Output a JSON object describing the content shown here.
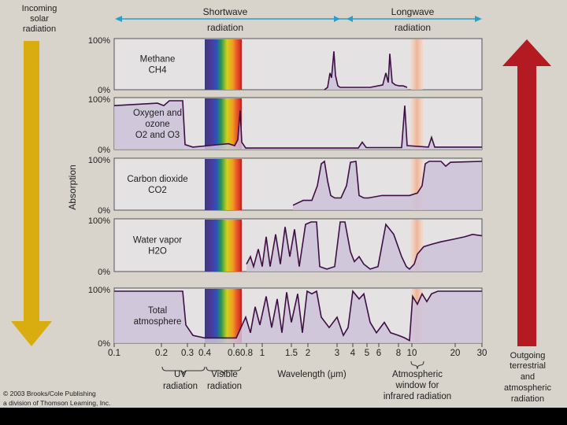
{
  "title_top": {
    "incoming": [
      "Incoming",
      "solar",
      "radiation"
    ],
    "shortwave": [
      "Shortwave",
      "radiation"
    ],
    "longwave": [
      "Longwave",
      "radiation"
    ],
    "outgoing": [
      "Outgoing",
      "terrestrial",
      "and",
      "atmospheric",
      "radiation"
    ]
  },
  "y_axis_label": "Absorption",
  "panels": [
    {
      "name": "methane",
      "lines": [
        "Methane",
        "CH4"
      ],
      "top_label": "100%",
      "bottom_label": "0%"
    },
    {
      "name": "oxygen-ozone",
      "lines": [
        "Oxygen and",
        "ozone",
        "O2 and O3"
      ],
      "top_label": "100%",
      "bottom_label": "0%"
    },
    {
      "name": "carbon-dioxide",
      "lines": [
        "Carbon dioxide",
        "CO2"
      ],
      "top_label": "100%",
      "bottom_label": "0%"
    },
    {
      "name": "water-vapor",
      "lines": [
        "Water vapor",
        "H2O"
      ],
      "top_label": "100%",
      "bottom_label": "0%"
    },
    {
      "name": "total-atmosphere",
      "lines": [
        "Total",
        "atmosphere"
      ],
      "top_label": "100%",
      "bottom_label": "0%"
    }
  ],
  "x_ticks": [
    "0.1",
    "0.2",
    "0.3",
    "0.4",
    "0.6",
    "0.8",
    "1",
    "1.5",
    "2",
    "3",
    "4",
    "5",
    "6",
    "8",
    "10",
    "20",
    "30"
  ],
  "bottom_labels": {
    "uv": [
      "UV",
      "radiation"
    ],
    "visible": [
      "Visible",
      "radiation"
    ],
    "wavelength": "Wavelength (μm)",
    "window": [
      "Atmospheric",
      "window for",
      "infrared radiation"
    ]
  },
  "copyright": [
    "© 2003 Brooks/Cole Publishing",
    "a division of Thomson Learning, Inc."
  ],
  "colors": {
    "background": "#d8d3cb",
    "panel": "#e4e2e2",
    "fill": "#cdc2d9",
    "curve": "#3e0e44",
    "incoming_arrow": "#d9ad0f",
    "outgoing_arrow": "#b31a22",
    "window_band": "#f2cbb4",
    "title_arrow": "#2aa0c8"
  }
}
